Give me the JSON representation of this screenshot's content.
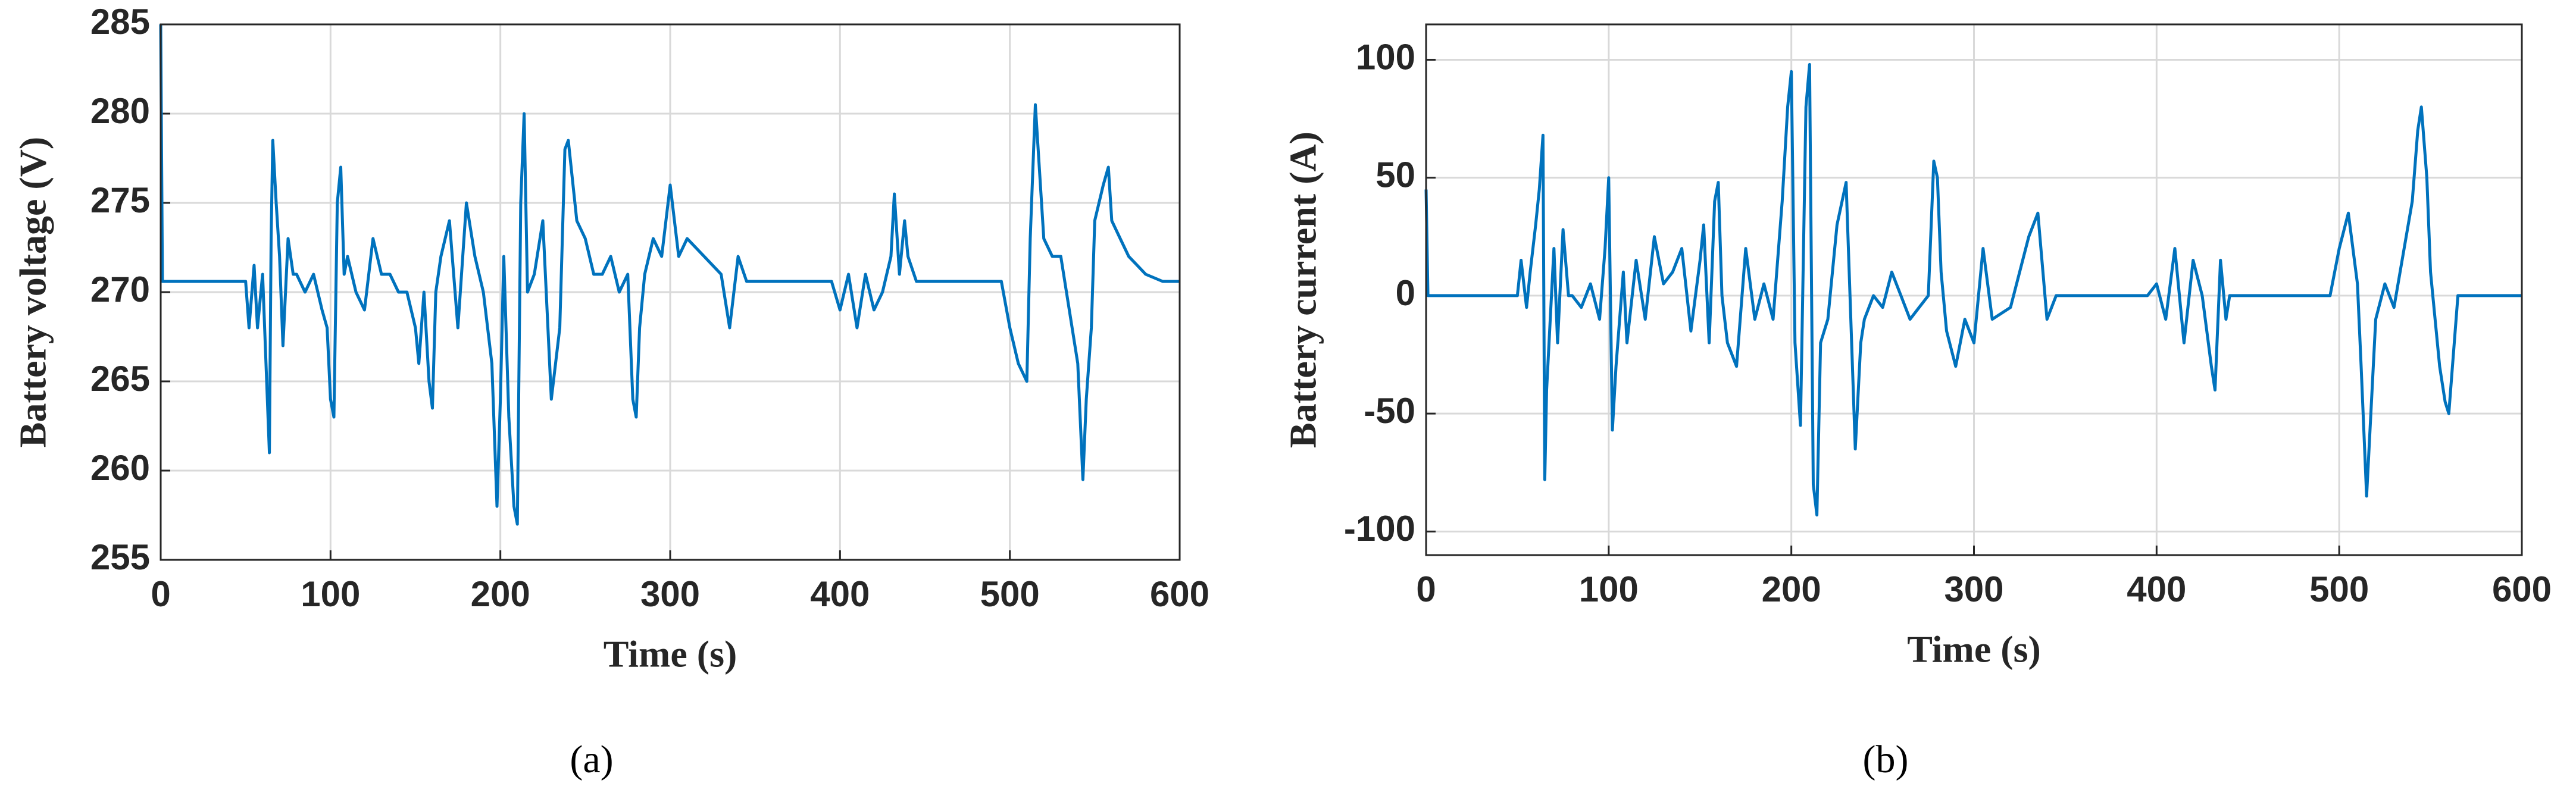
{
  "chart_data": [
    {
      "type": "line",
      "x_label": "Time (s)",
      "y_label": "Battery voltage (V)",
      "caption": "(a)",
      "xlim": [
        0,
        600
      ],
      "xticks": [
        0,
        100,
        200,
        300,
        400,
        500,
        600
      ],
      "ylim": [
        255,
        285
      ],
      "yticks": [
        255,
        260,
        265,
        270,
        275,
        280,
        285
      ],
      "grid": true,
      "color": "#0072bd",
      "x": [
        0,
        1,
        50,
        52,
        55,
        57,
        60,
        62,
        64,
        65,
        66,
        68,
        70,
        72,
        75,
        78,
        80,
        85,
        90,
        95,
        98,
        100,
        102,
        104,
        106,
        108,
        110,
        115,
        120,
        125,
        130,
        135,
        140,
        145,
        150,
        152,
        155,
        158,
        160,
        162,
        165,
        170,
        175,
        180,
        185,
        190,
        195,
        198,
        200,
        202,
        205,
        208,
        210,
        212,
        214,
        216,
        220,
        225,
        230,
        235,
        238,
        240,
        245,
        250,
        255,
        260,
        265,
        270,
        275,
        278,
        280,
        282,
        285,
        290,
        295,
        300,
        305,
        310,
        320,
        330,
        335,
        340,
        345,
        350,
        395,
        400,
        405,
        410,
        415,
        420,
        425,
        430,
        432,
        435,
        438,
        440,
        445,
        450,
        495,
        500,
        505,
        510,
        512,
        515,
        520,
        525,
        530,
        540,
        543,
        545,
        548,
        550,
        555,
        558,
        560,
        565,
        570,
        580,
        590,
        600
      ],
      "values": [
        285,
        270.6,
        270.6,
        268,
        271.5,
        268,
        271,
        266,
        261,
        273,
        278.5,
        275,
        272,
        267,
        273,
        271,
        271,
        270,
        271,
        269,
        268,
        264,
        263,
        275,
        277,
        271,
        272,
        270,
        269,
        273,
        271,
        271,
        270,
        270,
        268,
        266,
        270,
        265,
        263.5,
        270,
        272,
        274,
        268,
        275,
        272,
        270,
        266,
        258,
        264,
        272,
        263,
        258,
        257,
        275,
        280,
        270,
        271,
        274,
        264,
        268,
        278,
        278.5,
        274,
        273,
        271,
        271,
        272,
        270,
        271,
        264,
        263,
        268,
        271,
        273,
        272,
        276,
        272,
        273,
        272,
        271,
        268,
        272,
        270.6,
        270.6,
        270.6,
        269,
        271,
        268,
        271,
        269,
        270,
        272,
        275.5,
        271,
        274,
        272,
        270.6,
        270.6,
        270.6,
        268,
        266,
        265,
        273,
        280.5,
        273,
        272,
        272,
        266,
        259.5,
        264,
        268,
        274,
        276,
        277,
        274,
        273,
        272,
        271,
        270.6,
        270.6
      ]
    },
    {
      "type": "line",
      "x_label": "Time (s)",
      "y_label": "Battery current (A)",
      "caption": "(b)",
      "xlim": [
        0,
        600
      ],
      "xticks": [
        0,
        100,
        200,
        300,
        400,
        500,
        600
      ],
      "ylim": [
        -110,
        115
      ],
      "yticks": [
        -100,
        -50,
        0,
        50,
        100
      ],
      "grid": true,
      "color": "#0072bd",
      "x": [
        0,
        1,
        50,
        52,
        55,
        57,
        60,
        62,
        64,
        65,
        66,
        68,
        70,
        72,
        75,
        78,
        80,
        85,
        90,
        95,
        98,
        100,
        102,
        104,
        106,
        108,
        110,
        115,
        120,
        125,
        130,
        135,
        140,
        145,
        150,
        152,
        155,
        158,
        160,
        162,
        165,
        170,
        175,
        180,
        185,
        190,
        195,
        198,
        200,
        202,
        205,
        208,
        210,
        212,
        214,
        216,
        220,
        225,
        230,
        235,
        238,
        240,
        245,
        250,
        255,
        260,
        265,
        270,
        275,
        278,
        280,
        282,
        285,
        290,
        295,
        300,
        305,
        310,
        320,
        330,
        335,
        340,
        345,
        350,
        395,
        400,
        405,
        410,
        415,
        420,
        425,
        430,
        432,
        435,
        438,
        440,
        445,
        450,
        495,
        500,
        505,
        510,
        512,
        515,
        520,
        525,
        530,
        540,
        543,
        545,
        548,
        550,
        555,
        558,
        560,
        565,
        570,
        580,
        590,
        600
      ],
      "values": [
        45,
        0,
        0,
        15,
        -5,
        10,
        30,
        45,
        68,
        -78,
        -40,
        -10,
        20,
        -20,
        28,
        0,
        0,
        -5,
        5,
        -10,
        20,
        50,
        -57,
        -30,
        -10,
        10,
        -20,
        15,
        -10,
        25,
        5,
        10,
        20,
        -15,
        15,
        30,
        -20,
        40,
        48,
        0,
        -20,
        -30,
        20,
        -10,
        5,
        -10,
        40,
        80,
        95,
        -20,
        -55,
        80,
        98,
        -80,
        -93,
        -20,
        -10,
        30,
        48,
        -65,
        -20,
        -10,
        0,
        -5,
        10,
        0,
        -10,
        -5,
        0,
        57,
        50,
        10,
        -15,
        -30,
        -10,
        -20,
        20,
        -10,
        -5,
        25,
        35,
        -10,
        0,
        0,
        0,
        5,
        -10,
        20,
        -20,
        15,
        0,
        -30,
        -40,
        15,
        -10,
        0,
        0,
        0,
        0,
        20,
        35,
        5,
        -30,
        -85,
        -10,
        5,
        -5,
        40,
        70,
        80,
        50,
        10,
        -30,
        -45,
        -50,
        0,
        0,
        0,
        0,
        0
      ]
    }
  ]
}
